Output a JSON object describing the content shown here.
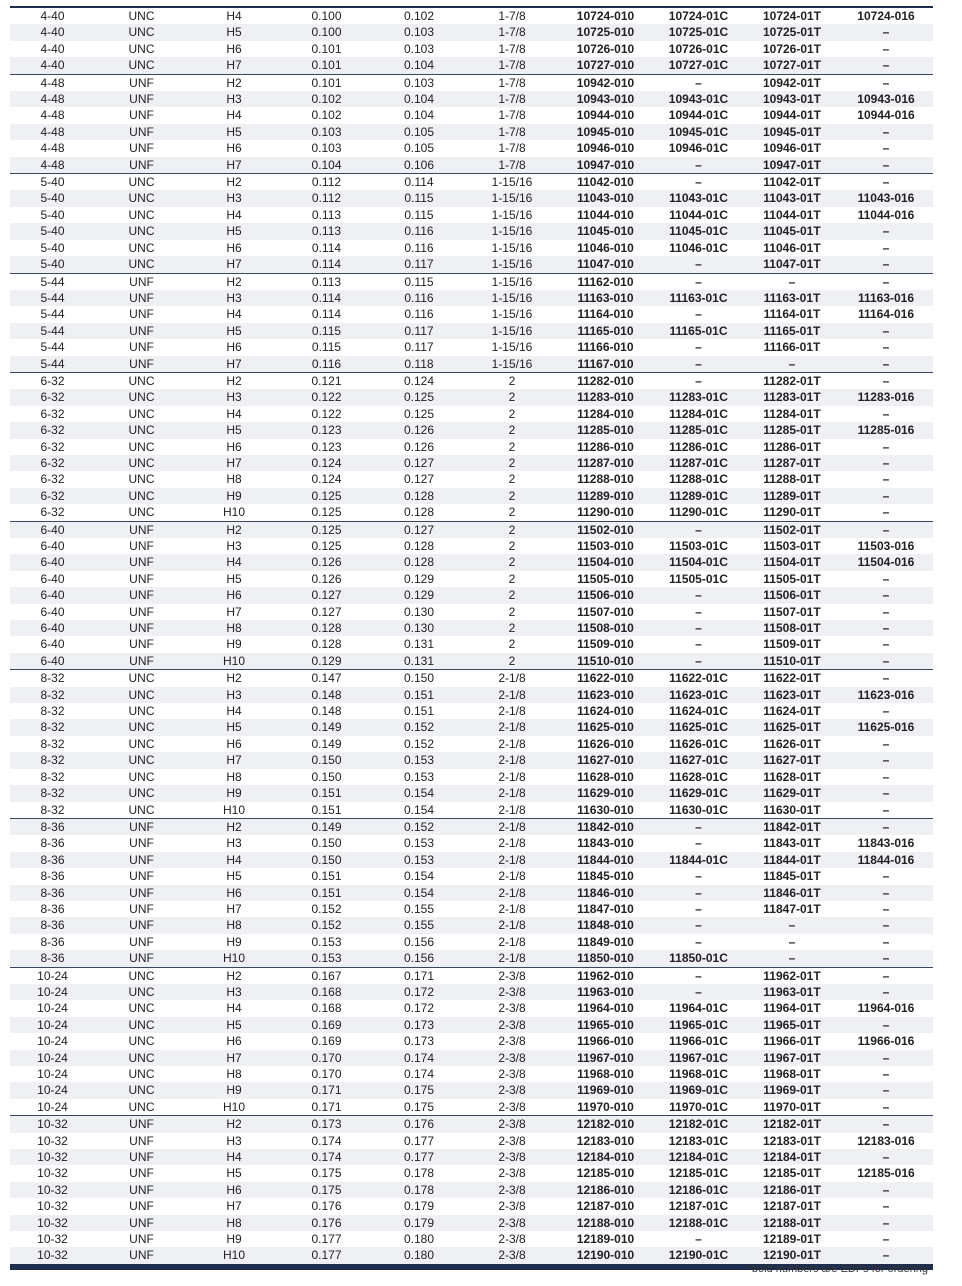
{
  "table": {
    "rows": [
      [
        "4-40",
        "UNC",
        "H4",
        "0.100",
        "0.102",
        "1-7/8",
        "10724-010",
        "10724-01C",
        "10724-01T",
        "10724-016"
      ],
      [
        "4-40",
        "UNC",
        "H5",
        "0.100",
        "0.103",
        "1-7/8",
        "10725-010",
        "10725-01C",
        "10725-01T",
        "–"
      ],
      [
        "4-40",
        "UNC",
        "H6",
        "0.101",
        "0.103",
        "1-7/8",
        "10726-010",
        "10726-01C",
        "10726-01T",
        "–"
      ],
      [
        "4-40",
        "UNC",
        "H7",
        "0.101",
        "0.104",
        "1-7/8",
        "10727-010",
        "10727-01C",
        "10727-01T",
        "–"
      ],
      [
        "4-48",
        "UNF",
        "H2",
        "0.101",
        "0.103",
        "1-7/8",
        "10942-010",
        "–",
        "10942-01T",
        "–"
      ],
      [
        "4-48",
        "UNF",
        "H3",
        "0.102",
        "0.104",
        "1-7/8",
        "10943-010",
        "10943-01C",
        "10943-01T",
        "10943-016"
      ],
      [
        "4-48",
        "UNF",
        "H4",
        "0.102",
        "0.104",
        "1-7/8",
        "10944-010",
        "10944-01C",
        "10944-01T",
        "10944-016"
      ],
      [
        "4-48",
        "UNF",
        "H5",
        "0.103",
        "0.105",
        "1-7/8",
        "10945-010",
        "10945-01C",
        "10945-01T",
        "–"
      ],
      [
        "4-48",
        "UNF",
        "H6",
        "0.103",
        "0.105",
        "1-7/8",
        "10946-010",
        "10946-01C",
        "10946-01T",
        "–"
      ],
      [
        "4-48",
        "UNF",
        "H7",
        "0.104",
        "0.106",
        "1-7/8",
        "10947-010",
        "–",
        "10947-01T",
        "–"
      ],
      [
        "5-40",
        "UNC",
        "H2",
        "0.112",
        "0.114",
        "1-15/16",
        "11042-010",
        "–",
        "11042-01T",
        "–"
      ],
      [
        "5-40",
        "UNC",
        "H3",
        "0.112",
        "0.115",
        "1-15/16",
        "11043-010",
        "11043-01C",
        "11043-01T",
        "11043-016"
      ],
      [
        "5-40",
        "UNC",
        "H4",
        "0.113",
        "0.115",
        "1-15/16",
        "11044-010",
        "11044-01C",
        "11044-01T",
        "11044-016"
      ],
      [
        "5-40",
        "UNC",
        "H5",
        "0.113",
        "0.116",
        "1-15/16",
        "11045-010",
        "11045-01C",
        "11045-01T",
        "–"
      ],
      [
        "5-40",
        "UNC",
        "H6",
        "0.114",
        "0.116",
        "1-15/16",
        "11046-010",
        "11046-01C",
        "11046-01T",
        "–"
      ],
      [
        "5-40",
        "UNC",
        "H7",
        "0.114",
        "0.117",
        "1-15/16",
        "11047-010",
        "–",
        "11047-01T",
        "–"
      ],
      [
        "5-44",
        "UNF",
        "H2",
        "0.113",
        "0.115",
        "1-15/16",
        "11162-010",
        "–",
        "–",
        "–"
      ],
      [
        "5-44",
        "UNF",
        "H3",
        "0.114",
        "0.116",
        "1-15/16",
        "11163-010",
        "11163-01C",
        "11163-01T",
        "11163-016"
      ],
      [
        "5-44",
        "UNF",
        "H4",
        "0.114",
        "0.116",
        "1-15/16",
        "11164-010",
        "–",
        "11164-01T",
        "11164-016"
      ],
      [
        "5-44",
        "UNF",
        "H5",
        "0.115",
        "0.117",
        "1-15/16",
        "11165-010",
        "11165-01C",
        "11165-01T",
        "–"
      ],
      [
        "5-44",
        "UNF",
        "H6",
        "0.115",
        "0.117",
        "1-15/16",
        "11166-010",
        "–",
        "11166-01T",
        "–"
      ],
      [
        "5-44",
        "UNF",
        "H7",
        "0.116",
        "0.118",
        "1-15/16",
        "11167-010",
        "–",
        "–",
        "–"
      ],
      [
        "6-32",
        "UNC",
        "H2",
        "0.121",
        "0.124",
        "2",
        "11282-010",
        "–",
        "11282-01T",
        "–"
      ],
      [
        "6-32",
        "UNC",
        "H3",
        "0.122",
        "0.125",
        "2",
        "11283-010",
        "11283-01C",
        "11283-01T",
        "11283-016"
      ],
      [
        "6-32",
        "UNC",
        "H4",
        "0.122",
        "0.125",
        "2",
        "11284-010",
        "11284-01C",
        "11284-01T",
        "–"
      ],
      [
        "6-32",
        "UNC",
        "H5",
        "0.123",
        "0.126",
        "2",
        "11285-010",
        "11285-01C",
        "11285-01T",
        "11285-016"
      ],
      [
        "6-32",
        "UNC",
        "H6",
        "0.123",
        "0.126",
        "2",
        "11286-010",
        "11286-01C",
        "11286-01T",
        "–"
      ],
      [
        "6-32",
        "UNC",
        "H7",
        "0.124",
        "0.127",
        "2",
        "11287-010",
        "11287-01C",
        "11287-01T",
        "–"
      ],
      [
        "6-32",
        "UNC",
        "H8",
        "0.124",
        "0.127",
        "2",
        "11288-010",
        "11288-01C",
        "11288-01T",
        "–"
      ],
      [
        "6-32",
        "UNC",
        "H9",
        "0.125",
        "0.128",
        "2",
        "11289-010",
        "11289-01C",
        "11289-01T",
        "–"
      ],
      [
        "6-32",
        "UNC",
        "H10",
        "0.125",
        "0.128",
        "2",
        "11290-010",
        "11290-01C",
        "11290-01T",
        "–"
      ],
      [
        "6-40",
        "UNF",
        "H2",
        "0.125",
        "0.127",
        "2",
        "11502-010",
        "–",
        "11502-01T",
        "–"
      ],
      [
        "6-40",
        "UNF",
        "H3",
        "0.125",
        "0.128",
        "2",
        "11503-010",
        "11503-01C",
        "11503-01T",
        "11503-016"
      ],
      [
        "6-40",
        "UNF",
        "H4",
        "0.126",
        "0.128",
        "2",
        "11504-010",
        "11504-01C",
        "11504-01T",
        "11504-016"
      ],
      [
        "6-40",
        "UNF",
        "H5",
        "0.126",
        "0.129",
        "2",
        "11505-010",
        "11505-01C",
        "11505-01T",
        "–"
      ],
      [
        "6-40",
        "UNF",
        "H6",
        "0.127",
        "0.129",
        "2",
        "11506-010",
        "–",
        "11506-01T",
        "–"
      ],
      [
        "6-40",
        "UNF",
        "H7",
        "0.127",
        "0.130",
        "2",
        "11507-010",
        "–",
        "11507-01T",
        "–"
      ],
      [
        "6-40",
        "UNF",
        "H8",
        "0.128",
        "0.130",
        "2",
        "11508-010",
        "–",
        "11508-01T",
        "–"
      ],
      [
        "6-40",
        "UNF",
        "H9",
        "0.128",
        "0.131",
        "2",
        "11509-010",
        "–",
        "11509-01T",
        "–"
      ],
      [
        "6-40",
        "UNF",
        "H10",
        "0.129",
        "0.131",
        "2",
        "11510-010",
        "–",
        "11510-01T",
        "–"
      ],
      [
        "8-32",
        "UNC",
        "H2",
        "0.147",
        "0.150",
        "2-1/8",
        "11622-010",
        "11622-01C",
        "11622-01T",
        "–"
      ],
      [
        "8-32",
        "UNC",
        "H3",
        "0.148",
        "0.151",
        "2-1/8",
        "11623-010",
        "11623-01C",
        "11623-01T",
        "11623-016"
      ],
      [
        "8-32",
        "UNC",
        "H4",
        "0.148",
        "0.151",
        "2-1/8",
        "11624-010",
        "11624-01C",
        "11624-01T",
        "–"
      ],
      [
        "8-32",
        "UNC",
        "H5",
        "0.149",
        "0.152",
        "2-1/8",
        "11625-010",
        "11625-01C",
        "11625-01T",
        "11625-016"
      ],
      [
        "8-32",
        "UNC",
        "H6",
        "0.149",
        "0.152",
        "2-1/8",
        "11626-010",
        "11626-01C",
        "11626-01T",
        "–"
      ],
      [
        "8-32",
        "UNC",
        "H7",
        "0.150",
        "0.153",
        "2-1/8",
        "11627-010",
        "11627-01C",
        "11627-01T",
        "–"
      ],
      [
        "8-32",
        "UNC",
        "H8",
        "0.150",
        "0.153",
        "2-1/8",
        "11628-010",
        "11628-01C",
        "11628-01T",
        "–"
      ],
      [
        "8-32",
        "UNC",
        "H9",
        "0.151",
        "0.154",
        "2-1/8",
        "11629-010",
        "11629-01C",
        "11629-01T",
        "–"
      ],
      [
        "8-32",
        "UNC",
        "H10",
        "0.151",
        "0.154",
        "2-1/8",
        "11630-010",
        "11630-01C",
        "11630-01T",
        "–"
      ],
      [
        "8-36",
        "UNF",
        "H2",
        "0.149",
        "0.152",
        "2-1/8",
        "11842-010",
        "–",
        "11842-01T",
        "–"
      ],
      [
        "8-36",
        "UNF",
        "H3",
        "0.150",
        "0.153",
        "2-1/8",
        "11843-010",
        "–",
        "11843-01T",
        "11843-016"
      ],
      [
        "8-36",
        "UNF",
        "H4",
        "0.150",
        "0.153",
        "2-1/8",
        "11844-010",
        "11844-01C",
        "11844-01T",
        "11844-016"
      ],
      [
        "8-36",
        "UNF",
        "H5",
        "0.151",
        "0.154",
        "2-1/8",
        "11845-010",
        "–",
        "11845-01T",
        "–"
      ],
      [
        "8-36",
        "UNF",
        "H6",
        "0.151",
        "0.154",
        "2-1/8",
        "11846-010",
        "–",
        "11846-01T",
        "–"
      ],
      [
        "8-36",
        "UNF",
        "H7",
        "0.152",
        "0.155",
        "2-1/8",
        "11847-010",
        "–",
        "11847-01T",
        "–"
      ],
      [
        "8-36",
        "UNF",
        "H8",
        "0.152",
        "0.155",
        "2-1/8",
        "11848-010",
        "–",
        "–",
        "–"
      ],
      [
        "8-36",
        "UNF",
        "H9",
        "0.153",
        "0.156",
        "2-1/8",
        "11849-010",
        "–",
        "–",
        "–"
      ],
      [
        "8-36",
        "UNF",
        "H10",
        "0.153",
        "0.156",
        "2-1/8",
        "11850-010",
        "11850-01C",
        "–",
        "–"
      ],
      [
        "10-24",
        "UNC",
        "H2",
        "0.167",
        "0.171",
        "2-3/8",
        "11962-010",
        "–",
        "11962-01T",
        "–"
      ],
      [
        "10-24",
        "UNC",
        "H3",
        "0.168",
        "0.172",
        "2-3/8",
        "11963-010",
        "–",
        "11963-01T",
        "–"
      ],
      [
        "10-24",
        "UNC",
        "H4",
        "0.168",
        "0.172",
        "2-3/8",
        "11964-010",
        "11964-01C",
        "11964-01T",
        "11964-016"
      ],
      [
        "10-24",
        "UNC",
        "H5",
        "0.169",
        "0.173",
        "2-3/8",
        "11965-010",
        "11965-01C",
        "11965-01T",
        "–"
      ],
      [
        "10-24",
        "UNC",
        "H6",
        "0.169",
        "0.173",
        "2-3/8",
        "11966-010",
        "11966-01C",
        "11966-01T",
        "11966-016"
      ],
      [
        "10-24",
        "UNC",
        "H7",
        "0.170",
        "0.174",
        "2-3/8",
        "11967-010",
        "11967-01C",
        "11967-01T",
        "–"
      ],
      [
        "10-24",
        "UNC",
        "H8",
        "0.170",
        "0.174",
        "2-3/8",
        "11968-010",
        "11968-01C",
        "11968-01T",
        "–"
      ],
      [
        "10-24",
        "UNC",
        "H9",
        "0.171",
        "0.175",
        "2-3/8",
        "11969-010",
        "11969-01C",
        "11969-01T",
        "–"
      ],
      [
        "10-24",
        "UNC",
        "H10",
        "0.171",
        "0.175",
        "2-3/8",
        "11970-010",
        "11970-01C",
        "11970-01T",
        "–"
      ],
      [
        "10-32",
        "UNF",
        "H2",
        "0.173",
        "0.176",
        "2-3/8",
        "12182-010",
        "12182-01C",
        "12182-01T",
        "–"
      ],
      [
        "10-32",
        "UNF",
        "H3",
        "0.174",
        "0.177",
        "2-3/8",
        "12183-010",
        "12183-01C",
        "12183-01T",
        "12183-016"
      ],
      [
        "10-32",
        "UNF",
        "H4",
        "0.174",
        "0.177",
        "2-3/8",
        "12184-010",
        "12184-01C",
        "12184-01T",
        "–"
      ],
      [
        "10-32",
        "UNF",
        "H5",
        "0.175",
        "0.178",
        "2-3/8",
        "12185-010",
        "12185-01C",
        "12185-01T",
        "12185-016"
      ],
      [
        "10-32",
        "UNF",
        "H6",
        "0.175",
        "0.178",
        "2-3/8",
        "12186-010",
        "12186-01C",
        "12186-01T",
        "–"
      ],
      [
        "10-32",
        "UNF",
        "H7",
        "0.176",
        "0.179",
        "2-3/8",
        "12187-010",
        "12187-01C",
        "12187-01T",
        "–"
      ],
      [
        "10-32",
        "UNF",
        "H8",
        "0.176",
        "0.179",
        "2-3/8",
        "12188-010",
        "12188-01C",
        "12188-01T",
        "–"
      ],
      [
        "10-32",
        "UNF",
        "H9",
        "0.177",
        "0.180",
        "2-3/8",
        "12189-010",
        "–",
        "12189-01T",
        "–"
      ],
      [
        "10-32",
        "UNF",
        "H10",
        "0.177",
        "0.180",
        "2-3/8",
        "12190-010",
        "12190-01C",
        "12190-01T",
        "–"
      ]
    ]
  },
  "footnote": "*bold numbers are EDPs for ordering"
}
